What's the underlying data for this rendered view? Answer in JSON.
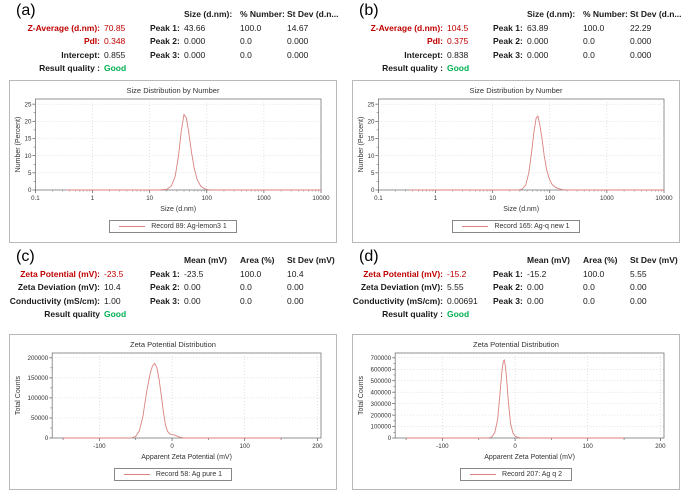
{
  "colors": {
    "accent_red": "#c00000",
    "good_green": "#00b050",
    "curve_red": "#d9827e"
  },
  "panels": [
    {
      "letter": "(a)",
      "stats_rows": [
        {
          "label": "Z-Average (d.nm):",
          "value": "70.85"
        },
        {
          "label": "PdI:",
          "value": "0.348"
        },
        {
          "label": "Intercept:",
          "value": "0.855"
        },
        {
          "label": "Result quality :",
          "value": "Good"
        }
      ],
      "peak_table": {
        "col_headers": [
          "Size (d.nm):",
          "% Number:",
          "St Dev (d.n..."
        ],
        "rows": [
          {
            "label": "Peak 1:",
            "values": [
              "43.66",
              "100.0",
              "14.67"
            ]
          },
          {
            "label": "Peak 2:",
            "values": [
              "0.000",
              "0.0",
              "0.000"
            ]
          },
          {
            "label": "Peak 3:",
            "values": [
              "0.000",
              "0.0",
              "0.000"
            ]
          }
        ]
      },
      "chart_title": "Size Distribution by Number",
      "legend": "Record 89: Ag-lemon3 1"
    },
    {
      "letter": "(b)",
      "stats_rows": [
        {
          "label": "Z-Average (d.nm):",
          "value": "104.5"
        },
        {
          "label": "PdI:",
          "value": "0.375"
        },
        {
          "label": "Intercept:",
          "value": "0.838"
        },
        {
          "label": "Result quality :",
          "value": "Good"
        }
      ],
      "peak_table": {
        "col_headers": [
          "Size (d.nm):",
          "% Number:",
          "St Dev (d.n..."
        ],
        "rows": [
          {
            "label": "Peak 1:",
            "values": [
              "63.89",
              "100.0",
              "22.29"
            ]
          },
          {
            "label": "Peak 2:",
            "values": [
              "0.000",
              "0.0",
              "0.000"
            ]
          },
          {
            "label": "Peak 3:",
            "values": [
              "0.000",
              "0.0",
              "0.000"
            ]
          }
        ]
      },
      "chart_title": "Size Distribution by Number",
      "legend": "Record 165: Ag-q new 1"
    },
    {
      "letter": "(c)",
      "stats_rows": [
        {
          "label": "Zeta Potential (mV):",
          "value": "-23.5"
        },
        {
          "label": "Zeta Deviation (mV):",
          "value": "10.4"
        },
        {
          "label": "Conductivity (mS/cm):",
          "value": "1.00"
        },
        {
          "label": "Result quality",
          "value": "Good"
        }
      ],
      "peak_table": {
        "col_headers": [
          "Mean (mV)",
          "Area (%)",
          "St Dev (mV)"
        ],
        "rows": [
          {
            "label": "Peak 1:",
            "values": [
              "-23.5",
              "100.0",
              "10.4"
            ]
          },
          {
            "label": "Peak 2:",
            "values": [
              "0.00",
              "0.0",
              "0.00"
            ]
          },
          {
            "label": "Peak 3:",
            "values": [
              "0.00",
              "0.0",
              "0.00"
            ]
          }
        ]
      },
      "chart_title": "Zeta Potential Distribution",
      "legend": "Record 58: Ag pure 1"
    },
    {
      "letter": "(d)",
      "stats_rows": [
        {
          "label": "Zeta Potential (mV):",
          "value": "-15.2"
        },
        {
          "label": "Zeta Deviation (mV):",
          "value": "5.55"
        },
        {
          "label": "Conductivity (mS/cm):",
          "value": "0.00691"
        },
        {
          "label": "Result quality :",
          "value": "Good"
        }
      ],
      "peak_table": {
        "col_headers": [
          "Mean (mV)",
          "Area (%)",
          "St Dev (mV)"
        ],
        "rows": [
          {
            "label": "Peak 1:",
            "values": [
              "-15.2",
              "100.0",
              "5.55"
            ]
          },
          {
            "label": "Peak 2:",
            "values": [
              "0.00",
              "0.0",
              "0.00"
            ]
          },
          {
            "label": "Peak 3:",
            "values": [
              "0.00",
              "0.0",
              "0.00"
            ]
          }
        ]
      },
      "chart_title": "Zeta Potential Distribution",
      "legend": "Record 207: Ag q 2"
    }
  ],
  "chart_data": [
    {
      "type": "line",
      "title": "Size Distribution by Number",
      "xlabel": "Size (d.nm)",
      "ylabel": "Number (Percent)",
      "xscale": "log",
      "xlim": [
        0.1,
        10000
      ],
      "ylim": [
        0,
        25
      ],
      "xticks": [
        0.1,
        1,
        10,
        100,
        1000,
        10000
      ],
      "xtick_labels": [
        "0.1",
        "1",
        "10",
        "100",
        "1000",
        "10000"
      ],
      "yticks": [
        0,
        5,
        10,
        15,
        20,
        25
      ],
      "grid": true,
      "legend_position": "bottom",
      "series": [
        {
          "name": "Record 89: Ag-lemon3 1",
          "x": [
            0.35,
            15,
            20,
            24,
            28,
            32,
            36,
            40,
            44,
            48,
            54,
            60,
            68,
            78,
            90,
            105,
            120,
            10000
          ],
          "y": [
            0,
            0,
            0.2,
            1.2,
            4,
            10,
            17.5,
            22,
            21,
            17,
            11,
            6.5,
            3,
            1.2,
            0.4,
            0.1,
            0,
            0
          ]
        }
      ]
    },
    {
      "type": "line",
      "title": "Size Distribution by Number",
      "xlabel": "Size (d.nm)",
      "ylabel": "Number (Percent)",
      "xscale": "log",
      "xlim": [
        0.1,
        10000
      ],
      "ylim": [
        0,
        25
      ],
      "xticks": [
        0.1,
        1,
        10,
        100,
        1000,
        10000
      ],
      "xtick_labels": [
        "0.1",
        "1",
        "10",
        "100",
        "1000",
        "10000"
      ],
      "yticks": [
        0,
        5,
        10,
        15,
        20,
        25
      ],
      "grid": true,
      "legend_position": "bottom",
      "series": [
        {
          "name": "Record 165: Ag-q new 1",
          "x": [
            0.35,
            28,
            33,
            38,
            43,
            48,
            53,
            58,
            62,
            67,
            73,
            80,
            88,
            98,
            110,
            125,
            145,
            170,
            200,
            10000
          ],
          "y": [
            0,
            0,
            0.3,
            1.5,
            5,
            11,
            17,
            21,
            21.5,
            19,
            15,
            10,
            6,
            3.2,
            1.6,
            0.8,
            0.35,
            0.1,
            0,
            0
          ]
        }
      ]
    },
    {
      "type": "line",
      "title": "Zeta Potential Distribution",
      "xlabel": "Apparent Zeta Potential (mV)",
      "ylabel": "Total Counts",
      "xscale": "linear",
      "xlim": [
        -165,
        205
      ],
      "ylim": [
        0,
        200000
      ],
      "xticks": [
        -100,
        0,
        100,
        200
      ],
      "xtick_labels": [
        "-100",
        "0",
        "100",
        "200"
      ],
      "xminor": [
        -150,
        -50,
        50,
        150
      ],
      "yticks": [
        0,
        50000,
        100000,
        150000,
        200000
      ],
      "grid": true,
      "legend_position": "bottom",
      "series": [
        {
          "name": "Record 58: Ag pure 1",
          "x": [
            -150,
            -65,
            -55,
            -50,
            -45,
            -40,
            -35,
            -30,
            -27,
            -24,
            -21,
            -18,
            -15,
            -12,
            -9,
            -6,
            -3,
            0,
            4,
            8,
            12,
            16,
            150
          ],
          "y": [
            0,
            0,
            500,
            4000,
            18000,
            55000,
            115000,
            162000,
            180000,
            186000,
            176000,
            148000,
            108000,
            65000,
            32000,
            16000,
            10000,
            8500,
            7000,
            4000,
            1200,
            0,
            0
          ]
        }
      ]
    },
    {
      "type": "line",
      "title": "Zeta Potential Distribution",
      "xlabel": "Apparent Zeta Potential (mV)",
      "ylabel": "Total Counts",
      "xscale": "linear",
      "xlim": [
        -165,
        205
      ],
      "ylim": [
        0,
        700000
      ],
      "xticks": [
        -100,
        0,
        100,
        200
      ],
      "xtick_labels": [
        "-100",
        "0",
        "100",
        "200"
      ],
      "xminor": [
        -150,
        -50,
        50,
        150
      ],
      "yticks": [
        0,
        100000,
        200000,
        300000,
        400000,
        500000,
        600000,
        700000
      ],
      "grid": true,
      "legend_position": "bottom",
      "series": [
        {
          "name": "Record 207: Ag q 2",
          "x": [
            -150,
            -42,
            -36,
            -32,
            -28,
            -24,
            -21,
            -18,
            -16,
            -15,
            -14,
            -12,
            -9,
            -6,
            -3,
            0,
            4,
            8,
            12,
            150
          ],
          "y": [
            0,
            0,
            1500,
            9000,
            45000,
            160000,
            370000,
            590000,
            670000,
            680000,
            655000,
            540000,
            300000,
            120000,
            45000,
            15000,
            4000,
            800,
            0,
            0
          ]
        }
      ]
    }
  ]
}
